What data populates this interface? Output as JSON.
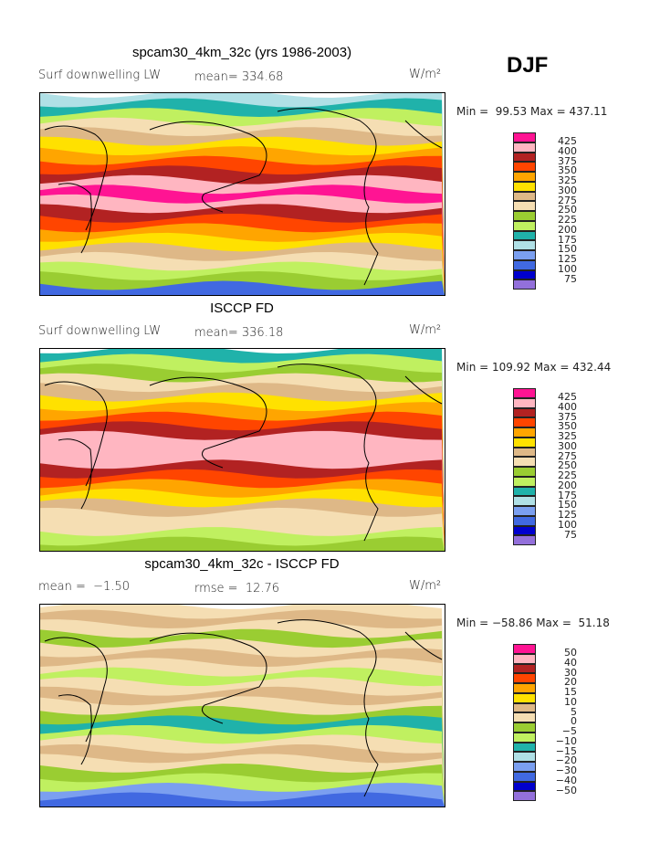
{
  "season": "DJF",
  "units": "W/m²",
  "palette": [
    "#ff1493",
    "#ffb6c1",
    "#b22222",
    "#ff4500",
    "#ffa500",
    "#ffe100",
    "#deb887",
    "#f5deb3",
    "#9acd32",
    "#c0f060",
    "#20b2aa",
    "#b0e0e6",
    "#7b9ff0",
    "#4169e1",
    "#0000cd",
    "#9370db"
  ],
  "panels": [
    {
      "title": "spcam30_4km_32c (yrs 1986-2003)",
      "left_label": "Surf downwelling LW",
      "mid_label": "mean= 334.68",
      "minmax": "Min =  99.53 Max = 437.11",
      "levels": [
        "425",
        "400",
        "375",
        "350",
        "325",
        "300",
        "275",
        "250",
        "225",
        "200",
        "175",
        "150",
        "125",
        "100",
        "75"
      ]
    },
    {
      "title": "ISCCP FD",
      "left_label": "Surf downwelling LW",
      "mid_label": "mean= 336.18",
      "minmax": "Min = 109.92 Max = 432.44",
      "levels": [
        "425",
        "400",
        "375",
        "350",
        "325",
        "300",
        "275",
        "250",
        "225",
        "200",
        "175",
        "150",
        "125",
        "100",
        "75"
      ]
    },
    {
      "title": "spcam30_4km_32c - ISCCP FD",
      "left_label": "mean =  −1.50",
      "mid_label": "rmse =  12.76",
      "minmax": "Min = −58.86 Max =  51.18",
      "levels": [
        "50",
        "40",
        "30",
        "20",
        "15",
        "10",
        "5",
        "0",
        "−5",
        "−10",
        "−15",
        "−20",
        "−30",
        "−40",
        "−50"
      ]
    }
  ]
}
